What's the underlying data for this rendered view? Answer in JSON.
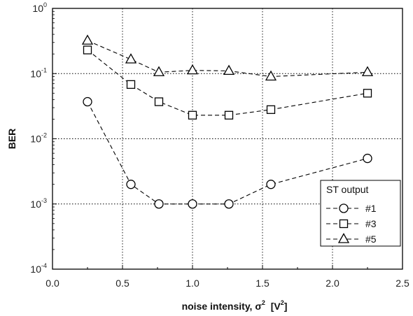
{
  "chart_data": {
    "type": "line",
    "title": "",
    "xlabel": "noise intensity, σ",
    "xlabel_sup": "2",
    "xlabel_unit_open": "  [V",
    "xlabel_unit_sup": "2",
    "xlabel_unit_close": "]",
    "ylabel": "BER",
    "xlim": [
      0.0,
      2.5
    ],
    "ylim": [
      0.0001,
      1
    ],
    "yscale": "log",
    "grid": true,
    "x_ticks": [
      "0.0",
      "0.5",
      "1.0",
      "1.5",
      "2.0",
      "2.5"
    ],
    "y_ticks": [
      {
        "base": "10",
        "exp": "0",
        "value": 1
      },
      {
        "base": "10",
        "exp": "-1",
        "value": 0.1
      },
      {
        "base": "10",
        "exp": "-2",
        "value": 0.01
      },
      {
        "base": "10",
        "exp": "-3",
        "value": 0.001
      },
      {
        "base": "10",
        "exp": "-4",
        "value": 0.0001
      }
    ],
    "legend_title": "ST output",
    "legend_position": "bottom-right",
    "series": [
      {
        "name": "#1",
        "marker": "circle",
        "x": [
          0.25,
          0.56,
          0.76,
          1.0,
          1.26,
          1.56,
          2.25
        ],
        "y": [
          0.037,
          0.002,
          0.001,
          0.001,
          0.001,
          0.002,
          0.005
        ]
      },
      {
        "name": "#3",
        "marker": "square",
        "x": [
          0.25,
          0.56,
          0.76,
          1.0,
          1.26,
          1.56,
          2.25
        ],
        "y": [
          0.23,
          0.068,
          0.037,
          0.023,
          0.023,
          0.028,
          0.05
        ]
      },
      {
        "name": "#5",
        "marker": "triangle",
        "x": [
          0.25,
          0.56,
          0.76,
          1.0,
          1.26,
          1.56,
          2.25
        ],
        "y": [
          0.32,
          0.165,
          0.105,
          0.112,
          0.11,
          0.09,
          0.105
        ]
      }
    ]
  }
}
